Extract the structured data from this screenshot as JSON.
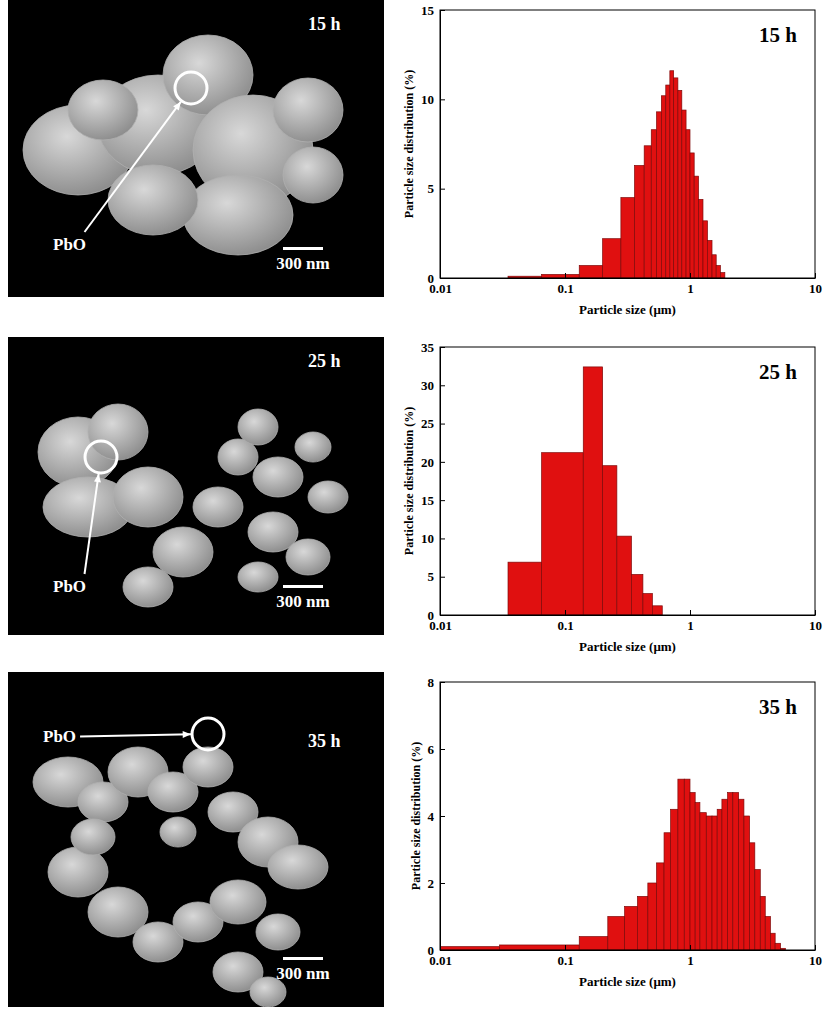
{
  "chart_data": [
    {
      "type": "histogram",
      "title": "15 h",
      "x_label": "Particle size (μm)",
      "y_label": "Particle size distribution (%)",
      "bins": [
        0.035,
        0.065,
        0.13,
        0.2,
        0.28,
        0.36,
        0.43,
        0.49,
        0.54,
        0.59,
        0.64,
        0.69,
        0.74,
        0.8,
        0.86,
        0.93,
        1.0,
        1.08,
        1.17,
        1.27,
        1.38,
        1.5,
        1.62,
        1.75,
        1.9
      ],
      "counts": [
        0.1,
        0.2,
        0.7,
        2.2,
        4.5,
        6.3,
        7.4,
        8.3,
        9.3,
        10.2,
        10.8,
        11.6,
        11.2,
        10.5,
        9.4,
        8.3,
        7.0,
        5.7,
        4.4,
        3.2,
        2.1,
        1.3,
        0.7,
        0.3
      ],
      "color": "#e01010",
      "log": "x",
      "xlim": [
        0.01,
        10
      ],
      "xticks": [
        0.01,
        0.1,
        1,
        10
      ],
      "ylim": [
        0,
        15
      ],
      "yticks": [
        0,
        5,
        10,
        15
      ]
    },
    {
      "type": "histogram",
      "title": "25 h",
      "x_label": "Particle size (μm)",
      "y_label": "Particle size distribution (%)",
      "bins": [
        0.035,
        0.065,
        0.14,
        0.2,
        0.26,
        0.34,
        0.42,
        0.5,
        0.6
      ],
      "counts": [
        6.9,
        21.2,
        32.4,
        19.5,
        10.3,
        5.3,
        2.8,
        1.2
      ],
      "color": "#e01010",
      "log": "x",
      "xlim": [
        0.01,
        10
      ],
      "xticks": [
        0.01,
        0.1,
        1,
        10
      ],
      "ylim": [
        0,
        35
      ],
      "yticks": [
        0,
        5,
        10,
        15,
        20,
        25,
        30,
        35
      ]
    },
    {
      "type": "histogram",
      "title": "35 h",
      "x_label": "Particle size (μm)",
      "y_label": "Particle size distribution (%)",
      "bins": [
        0.01,
        0.03,
        0.13,
        0.22,
        0.3,
        0.38,
        0.46,
        0.54,
        0.62,
        0.7,
        0.8,
        0.9,
        1.0,
        1.1,
        1.2,
        1.35,
        1.5,
        1.65,
        1.8,
        2.0,
        2.2,
        2.45,
        2.7,
        3.0,
        3.3,
        3.65,
        4.0,
        4.4,
        4.8,
        5.3,
        5.8
      ],
      "counts": [
        0.1,
        0.15,
        0.4,
        1.0,
        1.3,
        1.6,
        2.0,
        2.6,
        3.5,
        4.2,
        5.1,
        5.1,
        4.7,
        4.4,
        4.1,
        4.0,
        4.0,
        4.2,
        4.5,
        4.7,
        4.7,
        4.5,
        4.0,
        3.2,
        2.4,
        1.6,
        1.0,
        0.5,
        0.2,
        0.05
      ],
      "color": "#e01010",
      "log": "x",
      "xlim": [
        0.01,
        10
      ],
      "xticks": [
        0.01,
        0.1,
        1,
        10
      ],
      "ylim": [
        0,
        8
      ],
      "yticks": [
        0,
        2,
        4,
        6,
        8
      ]
    }
  ],
  "sem_images": [
    {
      "label": "15 h",
      "annotation": "PbO",
      "scale_bar": "300 nm"
    },
    {
      "label": "25 h",
      "annotation": "PbO",
      "scale_bar": "300 nm"
    },
    {
      "label": "35 h",
      "annotation": "PbO",
      "scale_bar": "300 nm"
    }
  ]
}
